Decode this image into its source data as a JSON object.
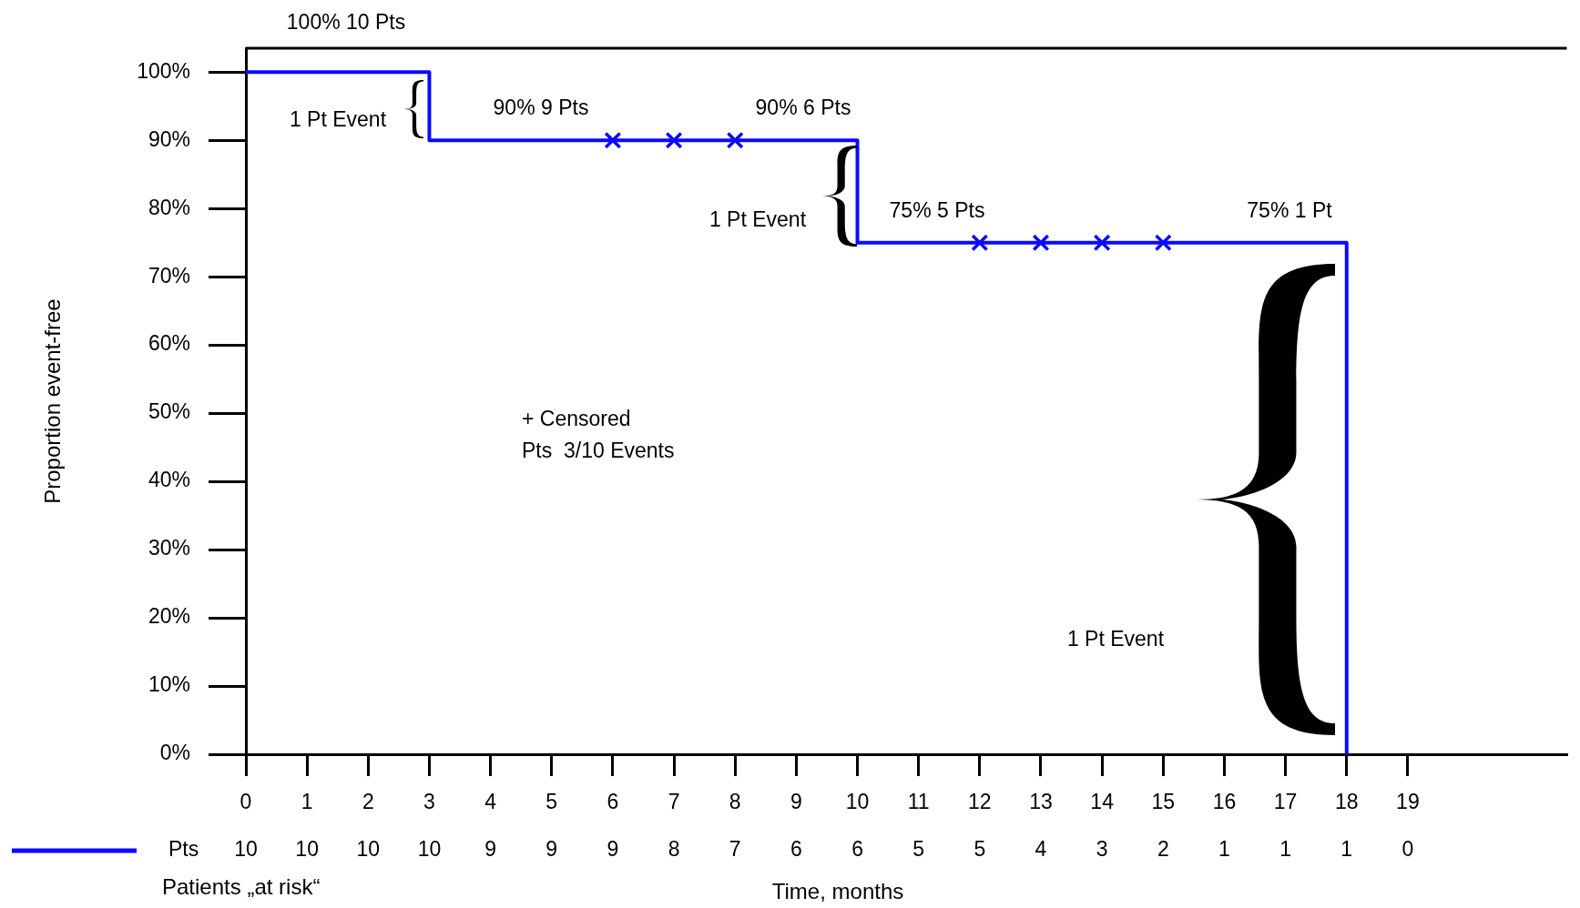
{
  "chart_data": {
    "type": "step",
    "xlabel": "Time, months",
    "ylabel": "Proportion event-free",
    "xlim": [
      0,
      21.6
    ],
    "xticks": [
      0,
      1,
      2,
      3,
      4,
      5,
      6,
      7,
      8,
      9,
      10,
      11,
      12,
      13,
      14,
      15,
      16,
      17,
      18,
      19
    ],
    "ylim": [
      0,
      103.5
    ],
    "yticks": [
      {
        "value": 0,
        "label": "0%"
      },
      {
        "value": 10,
        "label": "10%"
      },
      {
        "value": 20,
        "label": "20%"
      },
      {
        "value": 30,
        "label": "30%"
      },
      {
        "value": 40,
        "label": "40%"
      },
      {
        "value": 50,
        "label": "50%"
      },
      {
        "value": 60,
        "label": "60%"
      },
      {
        "value": 70,
        "label": "70%"
      },
      {
        "value": 80,
        "label": "80%"
      },
      {
        "value": 90,
        "label": "90%"
      },
      {
        "value": 100,
        "label": "100%"
      }
    ],
    "grid": false,
    "legend": "bottom left",
    "series": [
      {
        "name": "Patients „at risk“",
        "color": "#0a0aff",
        "x": [
          0,
          3,
          10,
          18
        ],
        "values": [
          100,
          90,
          75,
          0
        ],
        "marker": "none",
        "line_style": "solid"
      },
      {
        "type": "scatter",
        "color": "#0a0aff",
        "x": [
          6,
          7,
          8,
          12,
          13,
          14,
          15
        ],
        "values": [
          90,
          90,
          90,
          75,
          75,
          75,
          75
        ],
        "marker": "cross"
      }
    ],
    "annotations": [
      "100% 10 Pts",
      "90% 9 Pts",
      "90% 6 Pts",
      "75% 5 Pts",
      "75% 1 Pt",
      "1 Pt Event",
      "1 Pt Event",
      "1 Pt Event",
      "+ Censored",
      "Pts  3/10 Events",
      "Pts",
      "10",
      "10",
      "10",
      "10",
      "9",
      "9",
      "9",
      "8",
      "7",
      "6",
      "6",
      "5",
      "5",
      "4",
      "3",
      "2",
      "1",
      "1",
      "1",
      "0"
    ]
  }
}
